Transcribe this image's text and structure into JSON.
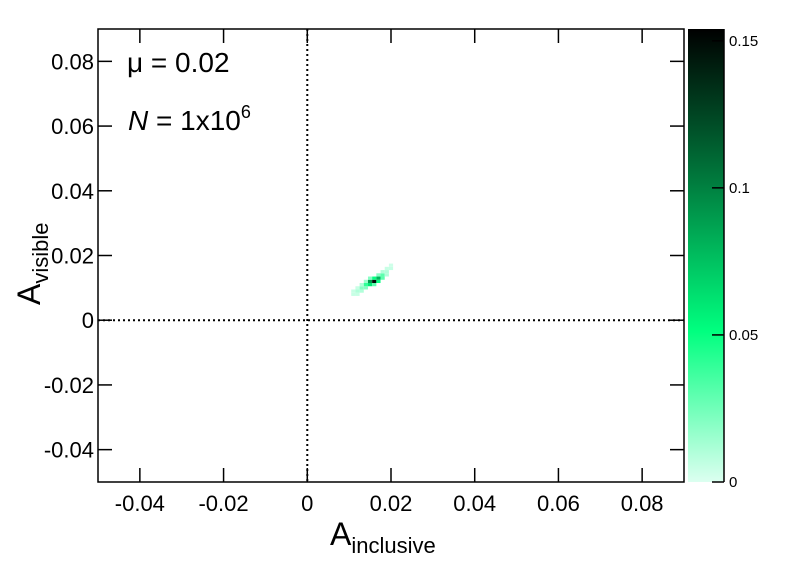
{
  "chart_data": {
    "type": "heatmap",
    "annotation_mu": "μ = 0.02",
    "annotation_n": {
      "symbol": "N",
      "text": " = 1x10",
      "superscript": "6"
    },
    "x_label": {
      "text": "A",
      "subscript": "inclusive"
    },
    "y_label": {
      "text": "A",
      "subscript": "visible"
    },
    "xlim": [
      -0.05,
      0.09
    ],
    "ylim": [
      -0.05,
      0.09
    ],
    "xticks": [
      -0.04,
      -0.02,
      0,
      0.02,
      0.04,
      0.06,
      0.08
    ],
    "yticks": [
      -0.04,
      -0.02,
      0,
      0.02,
      0.04,
      0.06,
      0.08
    ],
    "reference_lines_x": [
      0
    ],
    "reference_lines_y": [
      0
    ],
    "zlim": [
      0,
      0.154
    ],
    "zticks": [
      0,
      0.05,
      0.1,
      0.15
    ],
    "colorscale": [
      "#dcfff0",
      "#00ff7f",
      "#007a3d",
      "#000000"
    ],
    "cell_x": [
      0.011,
      0.011,
      0.012,
      0.012,
      0.012,
      0.013,
      0.013,
      0.013,
      0.014,
      0.014,
      0.014,
      0.015,
      0.015,
      0.015,
      0.016,
      0.016,
      0.016,
      0.017,
      0.017,
      0.017,
      0.018,
      0.018,
      0.018,
      0.019,
      0.019,
      0.019,
      0.02,
      0.02
    ],
    "cell_y": [
      0.008,
      0.009,
      0.008,
      0.009,
      0.01,
      0.009,
      0.01,
      0.011,
      0.01,
      0.011,
      0.012,
      0.011,
      0.012,
      0.013,
      0.011,
      0.012,
      0.013,
      0.012,
      0.013,
      0.014,
      0.013,
      0.014,
      0.015,
      0.014,
      0.015,
      0.016,
      0.016,
      0.017
    ],
    "values": [
      0.005,
      0.005,
      0.005,
      0.01,
      0.005,
      0.01,
      0.02,
      0.01,
      0.02,
      0.04,
      0.015,
      0.06,
      0.09,
      0.02,
      0.03,
      0.15,
      0.05,
      0.05,
      0.08,
      0.02,
      0.03,
      0.03,
      0.01,
      0.01,
      0.01,
      0.005,
      0.005,
      0.003
    ]
  }
}
